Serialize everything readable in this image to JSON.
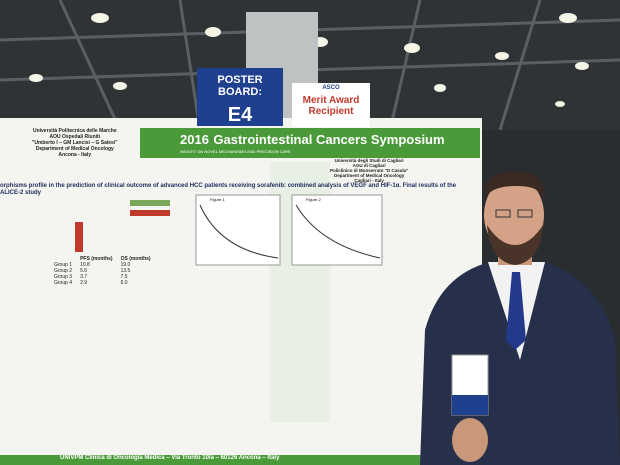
{
  "board": {
    "label": "POSTER BOARD:",
    "id": "E4"
  },
  "award": {
    "org": "ASCO",
    "text": "Merit Award Recipient"
  },
  "poster": {
    "year": "2016",
    "symposium": "Gastrointestinal Cancers Symposium",
    "subtitle": "INSIGHT ON NOVEL MECHANISMS AND PRECISION CARE",
    "left_institution": [
      "Università Politecnica delle Marche",
      "AOU Ospedali Riuniti",
      "\"Umberto I – GM Lancisi – G Salesi\"",
      "Department of Medical Oncology",
      "Ancona - Italy"
    ],
    "right_institution": [
      "Università degli Studi di Cagliari",
      "AOU di Cagliari",
      "Policlinico di Monserrato \"D Casula\"",
      "Department of Medical Oncology",
      "Cagliari - Italy"
    ],
    "title": "orphisms profile in the prediction of clinical outcome of advanced HCC patients receiving sorafenib: combined analysis of VEGF and HIF-1α. Final results of the ALICE-2 study",
    "table": {
      "header": [
        "PFS (months)",
        "OS (months)"
      ],
      "rows": [
        [
          "Group 1",
          "10.8",
          "19.0"
        ],
        [
          "Group 2",
          "5.6",
          "13.5"
        ],
        [
          "Group 3",
          "3.7",
          "7.5"
        ],
        [
          "Group 4",
          "2.9",
          "6.0"
        ]
      ]
    },
    "figures": [
      "Figure 1",
      "Figure 2"
    ],
    "footer": "UNIVPM Clinica di Oncologia Medica – Via Tronto 10/a – 60126 Ancona – Italy"
  }
}
